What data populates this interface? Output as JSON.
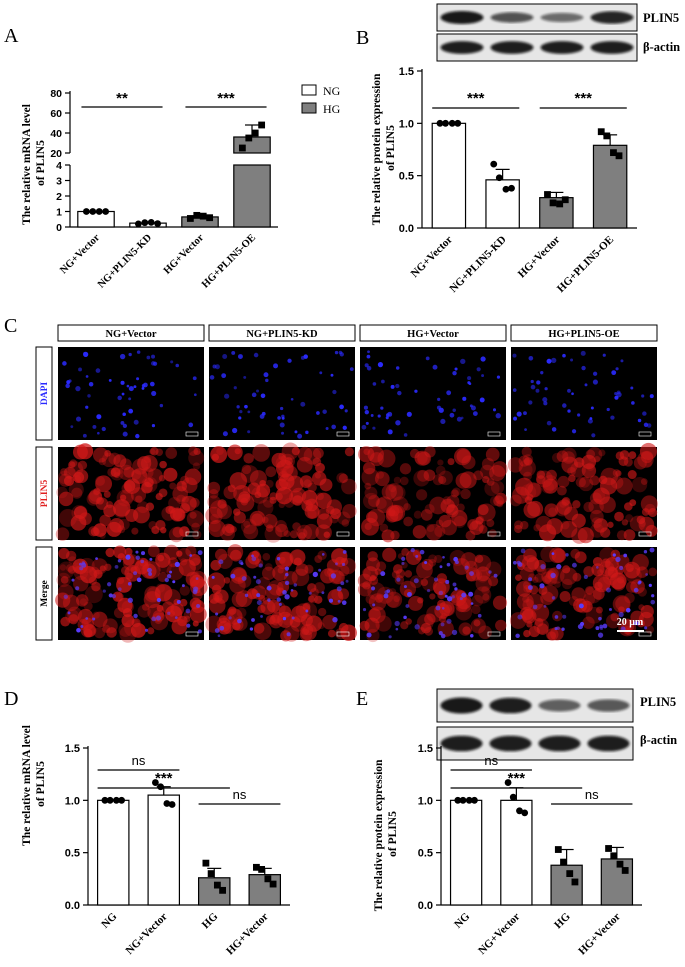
{
  "panels": {
    "A": "A",
    "B": "B",
    "C": "C",
    "D": "D",
    "E": "E"
  },
  "colors": {
    "hg_bar": "#7f7f7f",
    "ng_bar": "#ffffff",
    "dapi": "#2a2aff",
    "plin5": "#e02020"
  },
  "chart_data": [
    {
      "panel": "A",
      "type": "bar",
      "title": "",
      "ylabel": "The relative mRNA level of PLIN5",
      "axis_break": true,
      "ylim_lower": [
        0,
        4
      ],
      "ylim_upper": [
        20,
        80
      ],
      "yticks_lower": [
        "0",
        "1",
        "2",
        "3",
        "4"
      ],
      "yticks_upper": [
        "20",
        "40",
        "60",
        "80"
      ],
      "categories": [
        "NG+Vector",
        "NG+PLIN5-KD",
        "HG+Vector",
        "HG+PLIN5-OE"
      ],
      "values": [
        1.0,
        0.25,
        0.65,
        36
      ],
      "errors": [
        0.02,
        0.08,
        0.2,
        12
      ],
      "points": [
        [
          1,
          1,
          1,
          1
        ],
        [
          0.2,
          0.28,
          0.3,
          0.22
        ],
        [
          0.55,
          0.75,
          0.7,
          0.6
        ],
        [
          25,
          35,
          40,
          48
        ]
      ],
      "fill": [
        "NG",
        "NG",
        "HG",
        "HG"
      ],
      "legend": [
        "NG",
        "HG"
      ],
      "significance": [
        {
          "pair": [
            0,
            1
          ],
          "label": "**"
        },
        {
          "pair": [
            2,
            3
          ],
          "label": "***"
        }
      ]
    },
    {
      "panel": "B",
      "type": "bar",
      "title": "",
      "ylabel": "The relative protein expression of PLIN5",
      "ylim": [
        0,
        1.5
      ],
      "yticks": [
        "0.0",
        "0.5",
        "1.0",
        "1.5"
      ],
      "categories": [
        "NG+Vector",
        "NG+PLIN5-KD",
        "HG+Vector",
        "HG+PLIN5-OE"
      ],
      "values": [
        1.0,
        0.46,
        0.29,
        0.79
      ],
      "errors": [
        0.005,
        0.1,
        0.05,
        0.1
      ],
      "points": [
        [
          1,
          1,
          1,
          1
        ],
        [
          0.61,
          0.48,
          0.37,
          0.38
        ],
        [
          0.32,
          0.24,
          0.23,
          0.27
        ],
        [
          0.92,
          0.88,
          0.72,
          0.69
        ]
      ],
      "fill": [
        "NG",
        "NG",
        "HG",
        "HG"
      ],
      "significance": [
        {
          "pair": [
            0,
            1
          ],
          "label": "***"
        },
        {
          "pair": [
            2,
            3
          ],
          "label": "***"
        }
      ]
    },
    {
      "panel": "D",
      "type": "bar",
      "title": "",
      "ylabel": "The relative mRNA level of PLIN5",
      "ylim": [
        0,
        1.5
      ],
      "yticks": [
        "0.0",
        "0.5",
        "1.0",
        "1.5"
      ],
      "categories": [
        "NG",
        "NG+Vector",
        "HG",
        "HG+Vector"
      ],
      "values": [
        1.0,
        1.05,
        0.26,
        0.29
      ],
      "errors": [
        0.005,
        0.08,
        0.09,
        0.06
      ],
      "points": [
        [
          1,
          1,
          1,
          1
        ],
        [
          1.17,
          1.13,
          0.97,
          0.96
        ],
        [
          0.4,
          0.3,
          0.19,
          0.14
        ],
        [
          0.36,
          0.34,
          0.25,
          0.2
        ]
      ],
      "fill": [
        "NG",
        "NG",
        "HG",
        "HG"
      ],
      "significance": [
        {
          "pair": [
            0,
            1
          ],
          "label": "ns"
        },
        {
          "pair": [
            0,
            2
          ],
          "label": "***"
        },
        {
          "pair": [
            2,
            3
          ],
          "label": "ns"
        }
      ]
    },
    {
      "panel": "E",
      "type": "bar",
      "title": "",
      "ylabel": "The relative protein expression of PLIN5",
      "ylim": [
        0,
        1.5
      ],
      "yticks": [
        "0.0",
        "0.5",
        "1.0",
        "1.5"
      ],
      "categories": [
        "NG",
        "NG+Vector",
        "HG",
        "HG+Vector"
      ],
      "values": [
        1.0,
        1.0,
        0.38,
        0.44
      ],
      "errors": [
        0.005,
        0.12,
        0.15,
        0.11
      ],
      "points": [
        [
          1,
          1,
          1,
          1
        ],
        [
          1.17,
          1.03,
          0.9,
          0.88
        ],
        [
          0.53,
          0.41,
          0.3,
          0.22
        ],
        [
          0.54,
          0.47,
          0.39,
          0.33
        ]
      ],
      "fill": [
        "NG",
        "NG",
        "HG",
        "HG"
      ],
      "significance": [
        {
          "pair": [
            0,
            1
          ],
          "label": "ns"
        },
        {
          "pair": [
            0,
            2
          ],
          "label": "***"
        },
        {
          "pair": [
            2,
            3
          ],
          "label": "ns"
        }
      ]
    }
  ],
  "western_blots": {
    "B": {
      "bands": [
        "PLIN5",
        "β-actin"
      ],
      "plin5_intensity": [
        1.0,
        0.55,
        0.35,
        0.9
      ]
    },
    "E": {
      "bands": [
        "PLIN5",
        "β-actin"
      ],
      "plin5_intensity": [
        1.0,
        0.95,
        0.45,
        0.5
      ]
    }
  },
  "microscopy": {
    "columns": [
      "NG+Vector",
      "NG+PLIN5-KD",
      "HG+Vector",
      "HG+PLIN5-OE"
    ],
    "rows": [
      "DAPI",
      "PLIN5",
      "Merge"
    ],
    "plin5_intensity": [
      0.85,
      0.75,
      0.55,
      0.7
    ],
    "scale_bar": "20 μm"
  }
}
